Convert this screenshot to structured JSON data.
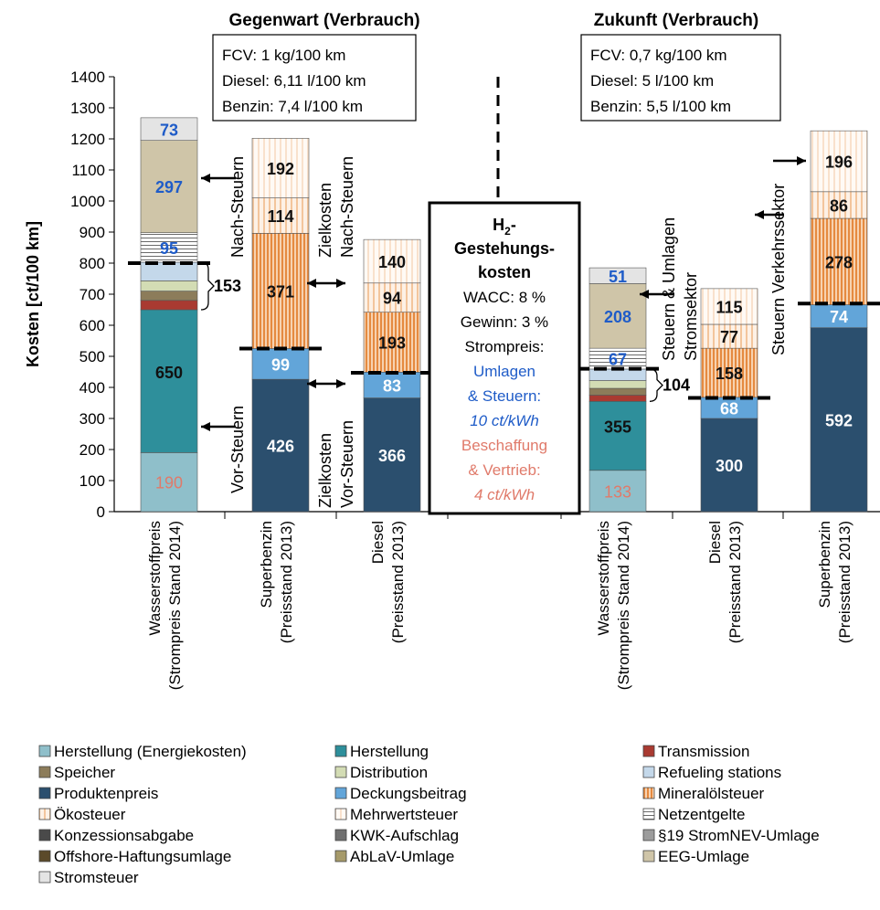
{
  "chart_data": {
    "type": "bar",
    "stacked": true,
    "ylabel": "Kosten [ct/100 km]",
    "ylim": [
      0,
      1400
    ],
    "yticks": [
      "0",
      "100",
      "200",
      "300",
      "400",
      "500",
      "600",
      "700",
      "800",
      "900",
      "1000",
      "1100",
      "1200",
      "1300",
      "1400"
    ],
    "grid": false,
    "legend_position": "bottom",
    "colors": {
      "herstellung_energie": "#8fbfca",
      "herstellung": "#2e8f9b",
      "transmission": "#a93a31",
      "speicher": "#8c7c5a",
      "distribution": "#d3dcb4",
      "refueling": "#c4d8ea",
      "produktenpreis": "#2b4f6e",
      "deckungsbeitrag": "#62a5d9",
      "mineraloelsteuer": "#eb9a57",
      "oekosteuer": "#f6d3b5",
      "mehrwertsteuer": "#fbeee3",
      "netzentgelte": "#8a8a8a",
      "konzession": "#4a4a4a",
      "kwk": "#707070",
      "stromnev": "#9c9c9c",
      "offshore": "#5b4a2a",
      "ablav": "#a69a6a",
      "eeg": "#cfc5a8",
      "stromsteuer": "#e4e4e4",
      "blue_text": "#1f5cc8",
      "salmon_text": "#e07a6a"
    },
    "period_headers": [
      "Gegenwart (Verbrauch)",
      "Zukunft (Verbrauch)"
    ],
    "consumption_boxes": [
      [
        "FCV: 1 kg/100 km",
        "Diesel: 6,11 l/100 km",
        "Benzin: 7,4 l/100 km"
      ],
      [
        "FCV: 0,7 kg/100 km",
        "Diesel: 5 l/100 km",
        "Benzin: 5,5 l/100 km"
      ]
    ],
    "categories": [
      [
        "Wasserstoffpreis",
        "(Strompreis Stand 2014)"
      ],
      [
        "Superbenzin",
        "(Preisstand 2013)"
      ],
      [
        "Diesel",
        "(Preisstand 2013)"
      ],
      [
        "Wasserstoffpreis",
        "(Strompreis Stand 2014)"
      ],
      [
        "Diesel",
        "(Preisstand 2013)"
      ],
      [
        "Superbenzin",
        "(Preisstand 2013)"
      ]
    ],
    "bars": [
      {
        "segments": [
          {
            "key": "herstellung_energie",
            "value": 190,
            "label": "190",
            "label_color": "salmon_text"
          },
          {
            "key": "herstellung",
            "value": 460,
            "label": "650",
            "label_color": "dark",
            "label_at": 450
          },
          {
            "key": "transmission",
            "value": 30
          },
          {
            "key": "speicher",
            "value": 30
          },
          {
            "key": "distribution",
            "value": 33
          },
          {
            "key": "refueling",
            "value": 60
          },
          {
            "key": "netzentgelte",
            "value": 95,
            "label": "95",
            "label_color": "blue_text"
          },
          {
            "key": "eeg",
            "value": 297,
            "label": "297",
            "label_color": "blue_text"
          },
          {
            "key": "stromsteuer",
            "value": 73,
            "label": "73",
            "label_color": "blue_text"
          }
        ]
      },
      {
        "segments": [
          {
            "key": "produktenpreis",
            "value": 426,
            "label": "426",
            "label_color": "white"
          },
          {
            "key": "deckungsbeitrag",
            "value": 99,
            "label": "99",
            "label_color": "white"
          },
          {
            "key": "mineraloelsteuer",
            "value": 371,
            "label": "371",
            "label_color": "dark"
          },
          {
            "key": "oekosteuer",
            "value": 114,
            "label": "114",
            "label_color": "dark"
          },
          {
            "key": "mehrwertsteuer",
            "value": 192,
            "label": "192",
            "label_color": "dark"
          }
        ]
      },
      {
        "segments": [
          {
            "key": "produktenpreis",
            "value": 366,
            "label": "366",
            "label_color": "white"
          },
          {
            "key": "deckungsbeitrag",
            "value": 83,
            "label": "83",
            "label_color": "white"
          },
          {
            "key": "mineraloelsteuer",
            "value": 193,
            "label": "193",
            "label_color": "dark"
          },
          {
            "key": "oekosteuer",
            "value": 94,
            "label": "94",
            "label_color": "dark"
          },
          {
            "key": "mehrwertsteuer",
            "value": 140,
            "label": "140",
            "label_color": "dark"
          }
        ]
      },
      {
        "segments": [
          {
            "key": "herstellung_energie",
            "value": 133,
            "label": "133",
            "label_color": "salmon_text"
          },
          {
            "key": "herstellung",
            "value": 222,
            "label": "355",
            "label_color": "dark",
            "label_at": 275
          },
          {
            "key": "transmission",
            "value": 20
          },
          {
            "key": "speicher",
            "value": 22
          },
          {
            "key": "distribution",
            "value": 25
          },
          {
            "key": "refueling",
            "value": 37
          },
          {
            "key": "netzentgelte",
            "value": 67,
            "label": "67",
            "label_color": "blue_text"
          },
          {
            "key": "eeg",
            "value": 208,
            "label": "208",
            "label_color": "blue_text"
          },
          {
            "key": "stromsteuer",
            "value": 51,
            "label": "51",
            "label_color": "blue_text"
          }
        ]
      },
      {
        "segments": [
          {
            "key": "produktenpreis",
            "value": 300,
            "label": "300",
            "label_color": "white"
          },
          {
            "key": "deckungsbeitrag",
            "value": 68,
            "label": "68",
            "label_color": "white"
          },
          {
            "key": "mineraloelsteuer",
            "value": 158,
            "label": "158",
            "label_color": "dark"
          },
          {
            "key": "oekosteuer",
            "value": 77,
            "label": "77",
            "label_color": "dark"
          },
          {
            "key": "mehrwertsteuer",
            "value": 115,
            "label": "115",
            "label_color": "dark"
          }
        ]
      },
      {
        "segments": [
          {
            "key": "produktenpreis",
            "value": 592,
            "label": "592",
            "label_color": "white"
          },
          {
            "key": "deckungsbeitrag",
            "value": 74,
            "label": "74",
            "label_color": "white"
          },
          {
            "key": "mineraloelsteuer",
            "value": 278,
            "label": "278",
            "label_color": "dark"
          },
          {
            "key": "oekosteuer",
            "value": 86,
            "label": "86",
            "label_color": "dark"
          },
          {
            "key": "mehrwertsteuer",
            "value": 196,
            "label": "196",
            "label_color": "dark"
          }
        ]
      }
    ],
    "reference_lines": [
      {
        "from_bar": 0,
        "to_bar": 0,
        "value": 800
      },
      {
        "from_bar": 1,
        "to_bar": 1,
        "value": 525
      },
      {
        "from_bar": 2,
        "to_bar": 2,
        "value": 447
      },
      {
        "from_bar": 3,
        "to_bar": 3,
        "value": 460
      },
      {
        "from_bar": 4,
        "to_bar": 4,
        "value": 366
      },
      {
        "from_bar": 5,
        "to_bar": 5,
        "value": 670
      }
    ],
    "brackets": [
      {
        "bar": 0,
        "from": 650,
        "to": 803,
        "label": "153"
      },
      {
        "bar": 3,
        "from": 355,
        "to": 459,
        "label": "104"
      }
    ],
    "annotations": {
      "nach_steuern": "Nach-Steuern",
      "vor_steuern": "Vor-Steuern",
      "zielkosten_nach_1": "Zielkosten",
      "zielkosten_nach_2": "Nach-Steuern",
      "zielkosten_vor_1": "Zielkosten",
      "zielkosten_vor_2": "Vor-Steuern",
      "steuern_umlagen_1": "Steuern & Umlagen",
      "steuern_umlagen_2": "Stromsektor",
      "steuern_verkehr": "Steuern Verkehrssektor"
    },
    "center_box": {
      "title_1": "H",
      "title_sub": "2",
      "title_2": "-",
      "title_3": "Gestehungs-",
      "title_4": "kosten",
      "wacc": "WACC: 8 %",
      "gewinn": "Gewinn: 3 %",
      "strompreis": "Strompreis:",
      "umlagen_1": "Umlagen",
      "umlagen_2": "& Steuern:",
      "umlagen_3": "10 ct/kWh",
      "beschaffung_1": "Beschaffung",
      "beschaffung_2": "& Vertrieb:",
      "beschaffung_3": "4 ct/kWh"
    },
    "legend": [
      {
        "key": "herstellung_energie",
        "label": "Herstellung (Energiekosten)"
      },
      {
        "key": "herstellung",
        "label": "Herstellung"
      },
      {
        "key": "transmission",
        "label": "Transmission"
      },
      {
        "key": "speicher",
        "label": "Speicher"
      },
      {
        "key": "distribution",
        "label": "Distribution"
      },
      {
        "key": "refueling",
        "label": "Refueling stations"
      },
      {
        "key": "produktenpreis",
        "label": "Produktenpreis"
      },
      {
        "key": "deckungsbeitrag",
        "label": "Deckungsbeitrag"
      },
      {
        "key": "mineraloelsteuer",
        "label": "Mineralölsteuer"
      },
      {
        "key": "oekosteuer",
        "label": "Ökosteuer"
      },
      {
        "key": "mehrwertsteuer",
        "label": "Mehrwertsteuer"
      },
      {
        "key": "netzentgelte",
        "label": "Netzentgelte"
      },
      {
        "key": "konzession",
        "label": "Konzessionsabgabe"
      },
      {
        "key": "kwk",
        "label": "KWK-Aufschlag"
      },
      {
        "key": "stromnev",
        "label": "§19 StromNEV-Umlage"
      },
      {
        "key": "offshore",
        "label": "Offshore-Haftungsumlage"
      },
      {
        "key": "ablav",
        "label": "AbLaV-Umlage"
      },
      {
        "key": "eeg",
        "label": "EEG-Umlage"
      },
      {
        "key": "stromsteuer",
        "label": "Stromsteuer"
      }
    ]
  }
}
